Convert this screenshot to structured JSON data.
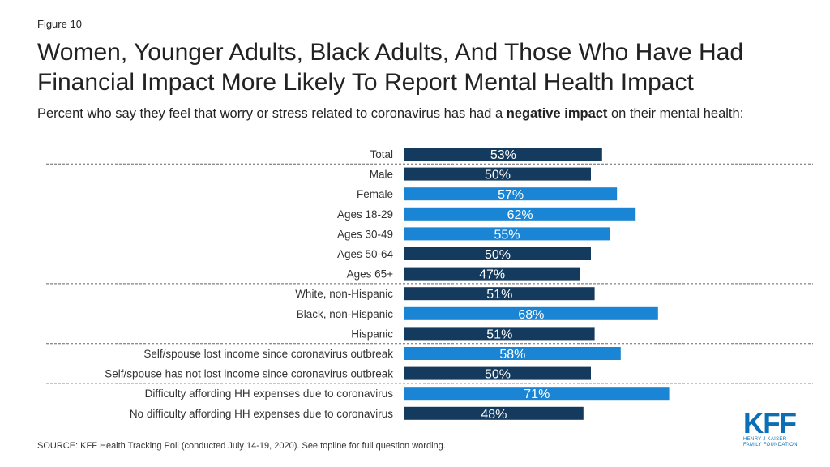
{
  "figure_label": "Figure 10",
  "title": "Women, Younger Adults, Black Adults, And Those Who Have Had Financial Impact More Likely To Report Mental Health Impact",
  "subtitle": {
    "before": "Percent who say they feel that worry or stress related to coronavirus has had a ",
    "bold": "negative impact",
    "after": " on their mental health:"
  },
  "source": "SOURCE: KFF Health Tracking Poll (conducted July 14-19, 2020). See topline for full question wording.",
  "logo": {
    "main": "KFF",
    "line1": "HENRY J KAISER",
    "line2": "FAMILY FOUNDATION"
  },
  "colors": {
    "dark": "#143b5e",
    "bright": "#1a85d4",
    "divider": "#666666"
  },
  "chart_data": {
    "type": "bar",
    "orientation": "horizontal",
    "categories": [
      "Total",
      "Male",
      "Female",
      "Ages 18-29",
      "Ages 30-49",
      "Ages 50-64",
      "Ages 65+",
      "White, non-Hispanic",
      "Black, non-Hispanic",
      "Hispanic",
      "Self/spouse lost income since coronavirus outbreak",
      "Self/spouse has not lost income since coronavirus outbreak",
      "Difficulty affording HH expenses due to coronavirus",
      "No difficulty affording HH expenses due to coronavirus"
    ],
    "values": [
      53,
      50,
      57,
      62,
      55,
      50,
      47,
      51,
      68,
      51,
      58,
      50,
      71,
      48
    ],
    "data_labels": [
      "53%",
      "50%",
      "57%",
      "62%",
      "55%",
      "50%",
      "47%",
      "51%",
      "68%",
      "51%",
      "58%",
      "50%",
      "71%",
      "48%"
    ],
    "highlight": [
      false,
      false,
      true,
      true,
      true,
      false,
      false,
      false,
      true,
      false,
      true,
      false,
      true,
      false
    ],
    "group_dividers_after": [
      0,
      2,
      6,
      9,
      11
    ],
    "xlim": [
      0,
      100
    ]
  }
}
